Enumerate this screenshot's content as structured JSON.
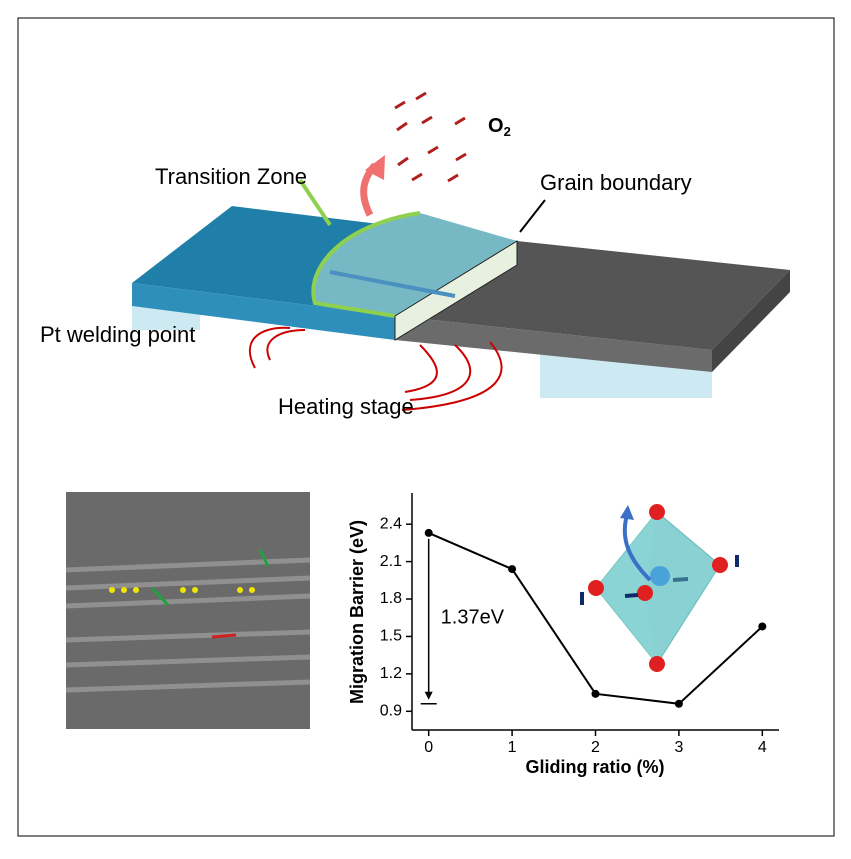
{
  "labels": {
    "transition_zone": "Transition Zone",
    "grain_boundary": "Grain boundary",
    "o2": {
      "symbol": "O",
      "subscript": "2"
    },
    "pt_welding": "Pt welding point",
    "heating_stage": "Heating stage"
  },
  "chart_data": {
    "type": "line",
    "x_label": "Gliding ratio (%)",
    "y_label": "Migration Barrier (eV)",
    "x": [
      0,
      1,
      2,
      3,
      4
    ],
    "values": [
      2.33,
      2.04,
      1.04,
      0.96,
      1.58
    ],
    "color": "#000000",
    "xlim": [
      -0.2,
      4.2
    ],
    "xticks": [
      0,
      1,
      2,
      3,
      4
    ],
    "ylim": [
      0.75,
      2.65
    ],
    "yticks": [
      0.9,
      1.2,
      1.5,
      1.8,
      2.1,
      2.4
    ],
    "annotation": "1.37eV"
  }
}
